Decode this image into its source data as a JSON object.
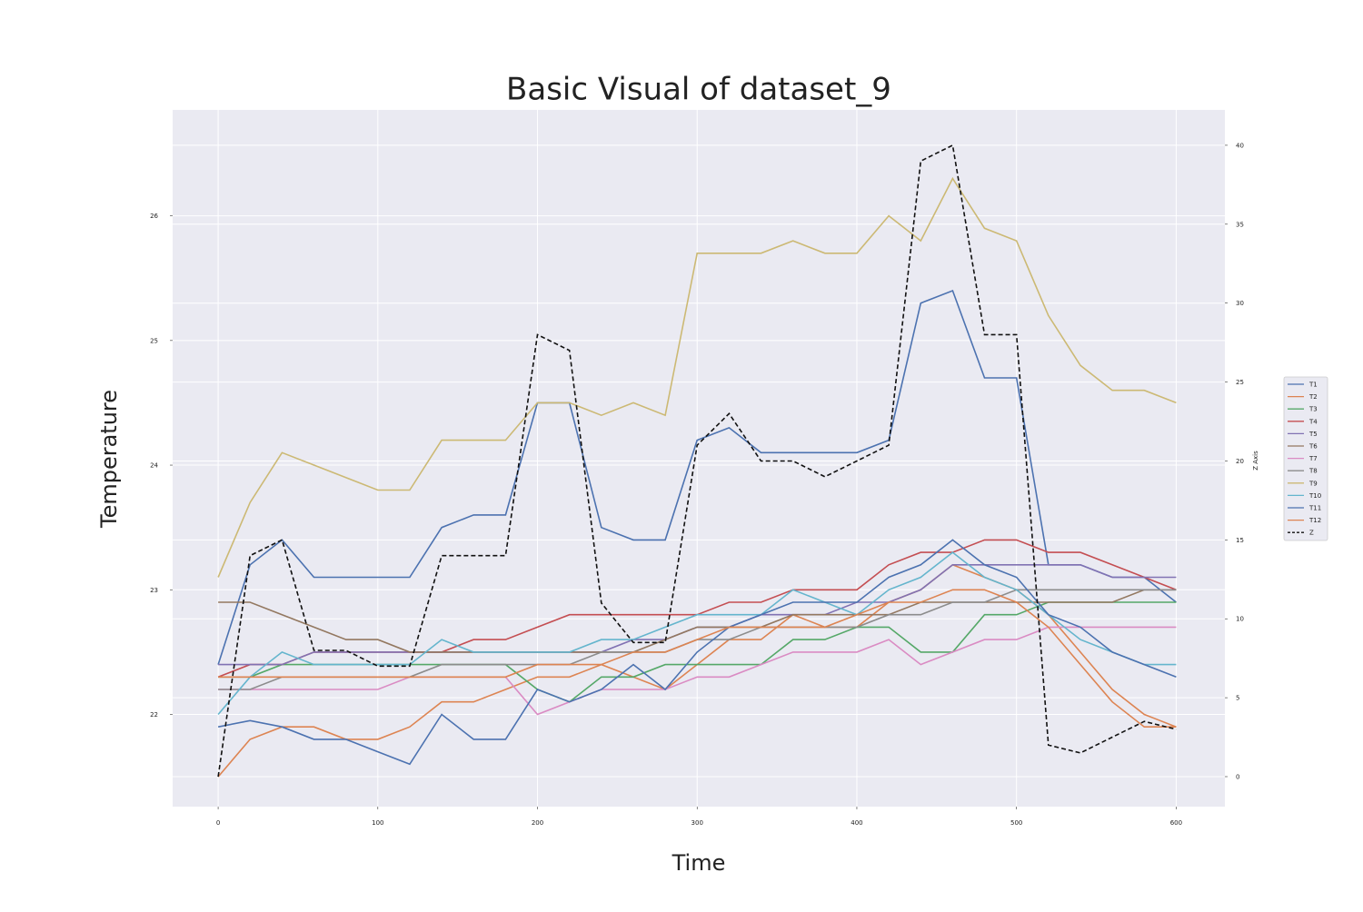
{
  "chart_data": {
    "type": "line",
    "title": "Basic Visual of dataset_9",
    "x_label": "Time",
    "y_label": "Temperature",
    "y2_label": "Z Axis",
    "x": [
      0,
      20,
      40,
      60,
      80,
      100,
      120,
      140,
      160,
      180,
      200,
      220,
      240,
      260,
      280,
      300,
      320,
      340,
      360,
      380,
      400,
      420,
      440,
      460,
      480,
      500,
      520,
      540,
      560,
      580,
      600
    ],
    "xlim": [
      -28.5,
      630.5
    ],
    "xticks": [
      0,
      100,
      200,
      300,
      400,
      500,
      600
    ],
    "ylim": [
      21.26,
      26.85
    ],
    "yticks": [
      22,
      23,
      24,
      25,
      26
    ],
    "y2lim": [
      -1.9,
      42.24
    ],
    "y2ticks": [
      0,
      5,
      10,
      15,
      20,
      25,
      30,
      35,
      40
    ],
    "grid": true,
    "legend": "right",
    "series": [
      {
        "name": "T1",
        "color": "#4c72b0",
        "values": [
          22.4,
          23.2,
          23.4,
          23.1,
          23.1,
          23.1,
          23.1,
          23.5,
          23.6,
          23.6,
          24.5,
          24.5,
          23.5,
          23.4,
          23.4,
          24.2,
          24.3,
          24.1,
          24.1,
          24.1,
          24.1,
          24.2,
          25.3,
          25.4,
          24.7,
          24.7,
          23.2,
          23.2,
          23.1,
          23.1,
          22.9
        ]
      },
      {
        "name": "T2",
        "color": "#dd8452",
        "values": [
          21.5,
          21.8,
          21.9,
          21.9,
          21.8,
          21.8,
          21.9,
          22.1,
          22.1,
          22.2,
          22.3,
          22.3,
          22.4,
          22.3,
          22.2,
          22.4,
          22.6,
          22.6,
          22.8,
          22.7,
          22.7,
          22.9,
          23.0,
          23.2,
          23.1,
          23.0,
          22.8,
          22.5,
          22.2,
          22.0,
          21.9
        ]
      },
      {
        "name": "T3",
        "color": "#55a868",
        "values": [
          22.3,
          22.3,
          22.4,
          22.4,
          22.4,
          22.4,
          22.4,
          22.4,
          22.4,
          22.4,
          22.2,
          22.1,
          22.3,
          22.3,
          22.4,
          22.4,
          22.4,
          22.4,
          22.6,
          22.6,
          22.7,
          22.7,
          22.5,
          22.5,
          22.8,
          22.8,
          22.9,
          22.9,
          22.9,
          22.9,
          22.9
        ]
      },
      {
        "name": "T4",
        "color": "#c44e52",
        "values": [
          22.3,
          22.4,
          22.4,
          22.5,
          22.5,
          22.5,
          22.5,
          22.5,
          22.6,
          22.6,
          22.7,
          22.8,
          22.8,
          22.8,
          22.8,
          22.8,
          22.9,
          22.9,
          23.0,
          23.0,
          23.0,
          23.2,
          23.3,
          23.3,
          23.4,
          23.4,
          23.3,
          23.3,
          23.2,
          23.1,
          23.0
        ]
      },
      {
        "name": "T5",
        "color": "#8172b3",
        "values": [
          22.4,
          22.4,
          22.4,
          22.5,
          22.5,
          22.5,
          22.5,
          22.5,
          22.5,
          22.5,
          22.5,
          22.5,
          22.5,
          22.6,
          22.6,
          22.7,
          22.7,
          22.8,
          22.8,
          22.8,
          22.9,
          22.9,
          23.0,
          23.2,
          23.2,
          23.2,
          23.2,
          23.2,
          23.1,
          23.1,
          23.1
        ]
      },
      {
        "name": "T6",
        "color": "#937860",
        "values": [
          22.9,
          22.9,
          22.8,
          22.7,
          22.6,
          22.6,
          22.5,
          22.5,
          22.5,
          22.5,
          22.5,
          22.5,
          22.5,
          22.5,
          22.6,
          22.7,
          22.7,
          22.7,
          22.8,
          22.8,
          22.8,
          22.8,
          22.9,
          22.9,
          22.9,
          22.9,
          22.9,
          22.9,
          22.9,
          23.0,
          23.0
        ]
      },
      {
        "name": "T7",
        "color": "#da8bc3",
        "values": [
          22.2,
          22.2,
          22.2,
          22.2,
          22.2,
          22.2,
          22.3,
          22.3,
          22.3,
          22.3,
          22.0,
          22.1,
          22.2,
          22.2,
          22.2,
          22.3,
          22.3,
          22.4,
          22.5,
          22.5,
          22.5,
          22.6,
          22.4,
          22.5,
          22.6,
          22.6,
          22.7,
          22.7,
          22.7,
          22.7,
          22.7
        ]
      },
      {
        "name": "T8",
        "color": "#8c8c8c",
        "values": [
          22.2,
          22.2,
          22.3,
          22.3,
          22.3,
          22.3,
          22.3,
          22.4,
          22.4,
          22.4,
          22.4,
          22.4,
          22.5,
          22.5,
          22.5,
          22.6,
          22.6,
          22.7,
          22.7,
          22.7,
          22.7,
          22.8,
          22.8,
          22.9,
          22.9,
          23.0,
          23.0,
          23.0,
          23.0,
          23.0,
          23.0
        ]
      },
      {
        "name": "T9",
        "color": "#ccb974",
        "values": [
          23.1,
          23.7,
          24.1,
          24.0,
          23.9,
          23.8,
          23.8,
          24.2,
          24.2,
          24.2,
          24.5,
          24.5,
          24.4,
          24.5,
          24.4,
          25.7,
          25.7,
          25.7,
          25.8,
          25.7,
          25.7,
          26.0,
          25.8,
          26.3,
          25.9,
          25.8,
          25.2,
          24.8,
          24.6,
          24.6,
          24.5
        ]
      },
      {
        "name": "T10",
        "color": "#64b5cd",
        "values": [
          22.0,
          22.3,
          22.5,
          22.4,
          22.4,
          22.4,
          22.4,
          22.6,
          22.5,
          22.5,
          22.5,
          22.5,
          22.6,
          22.6,
          22.7,
          22.8,
          22.8,
          22.8,
          23.0,
          22.9,
          22.8,
          23.0,
          23.1,
          23.3,
          23.1,
          23.0,
          22.8,
          22.6,
          22.5,
          22.4,
          22.4
        ]
      },
      {
        "name": "T11",
        "color": "#4c72b0",
        "values": [
          21.9,
          21.95,
          21.9,
          21.8,
          21.8,
          21.7,
          21.6,
          22.0,
          21.8,
          21.8,
          22.2,
          22.1,
          22.2,
          22.4,
          22.2,
          22.5,
          22.7,
          22.8,
          22.9,
          22.9,
          22.9,
          23.1,
          23.2,
          23.4,
          23.2,
          23.1,
          22.8,
          22.7,
          22.5,
          22.4,
          22.3
        ]
      },
      {
        "name": "T12",
        "color": "#dd8452",
        "values": [
          22.3,
          22.3,
          22.3,
          22.3,
          22.3,
          22.3,
          22.3,
          22.3,
          22.3,
          22.3,
          22.4,
          22.4,
          22.4,
          22.5,
          22.5,
          22.6,
          22.7,
          22.7,
          22.7,
          22.7,
          22.8,
          22.9,
          22.9,
          23.0,
          23.0,
          22.9,
          22.7,
          22.4,
          22.1,
          21.9,
          21.9
        ]
      },
      {
        "name": "Z",
        "color": "#111111",
        "axis": "y2",
        "linestyle": "dashed",
        "values": [
          0,
          14,
          15,
          8,
          8,
          7,
          7,
          14,
          14,
          14,
          28,
          27,
          11,
          8.5,
          8.5,
          21,
          23,
          20,
          20,
          19,
          20,
          21,
          39,
          40,
          28,
          28,
          2,
          1.5,
          2.5,
          3.5,
          3
        ]
      }
    ]
  }
}
